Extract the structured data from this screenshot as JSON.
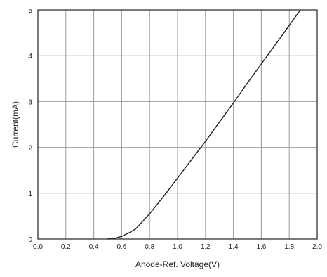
{
  "chart_data": {
    "type": "line",
    "title": "",
    "xlabel": "Anode-Ref. Voltage(V)",
    "ylabel": "Current(mA)",
    "xlim": [
      0.0,
      2.0
    ],
    "ylim": [
      0,
      5
    ],
    "x_ticks": [
      "0.0",
      "0.2",
      "0.4",
      "0.6",
      "0.8",
      "1.0",
      "1.2",
      "1.4",
      "1.6",
      "1.8",
      "2.0"
    ],
    "y_ticks": [
      "0",
      "1",
      "2",
      "3",
      "4",
      "5"
    ],
    "grid": true,
    "series": [
      {
        "x": [
          0.5,
          0.55,
          0.6,
          0.65,
          0.7,
          0.8,
          0.9,
          1.0,
          1.1,
          1.2,
          1.3,
          1.4,
          1.5,
          1.6,
          1.7,
          1.8,
          1.88
        ],
        "y": [
          0.0,
          0.01,
          0.06,
          0.13,
          0.22,
          0.55,
          0.93,
          1.33,
          1.73,
          2.13,
          2.55,
          2.97,
          3.4,
          3.82,
          4.24,
          4.66,
          5.0
        ]
      }
    ]
  }
}
